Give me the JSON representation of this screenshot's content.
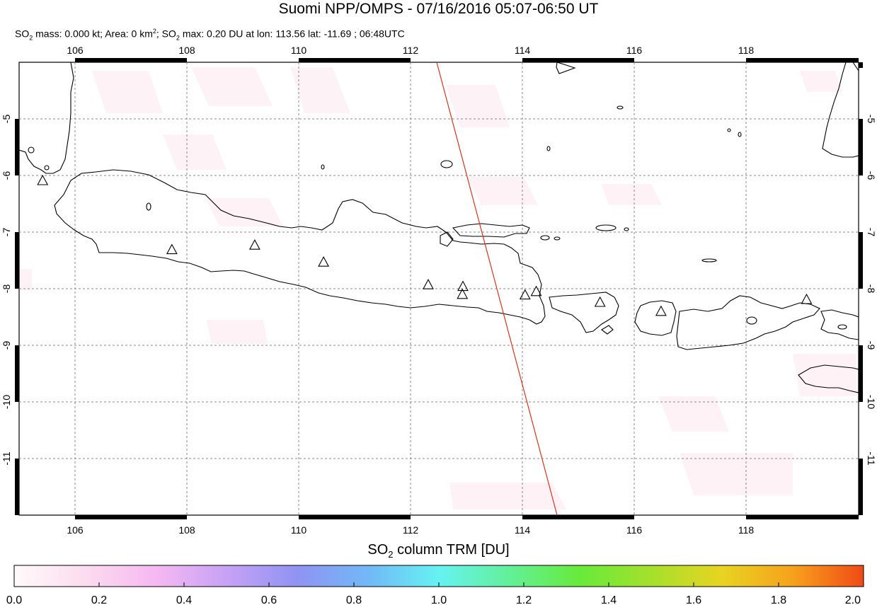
{
  "header": {
    "title": "Suomi NPP/OMPS - 07/16/2016 05:07-06:50 UT",
    "subtitle_parts": {
      "so2_a": "SO",
      "sub2a": "2",
      "mass": " mass: 0.000 kt; Area: 0 km",
      "sup2": "2",
      "sep": "; SO",
      "sub2b": "2",
      "rest": " max: 0.20 DU at lon: 113.56 lat: -11.69 ; 06:48UTC"
    }
  },
  "map": {
    "lon_ticks": [
      "106",
      "108",
      "110",
      "112",
      "114",
      "116",
      "118"
    ],
    "lat_ticks": [
      "-5",
      "-6",
      "-7",
      "-8",
      "-9",
      "-10",
      "-11"
    ],
    "lon_range": [
      105.0,
      120.0
    ],
    "lat_range": [
      -12.0,
      -4.0
    ],
    "grid": true,
    "orbit_track_color": "#e0331c",
    "volcanoes": [
      {
        "lon": 105.42,
        "lat": -6.1
      },
      {
        "lon": 107.73,
        "lat": -7.32
      },
      {
        "lon": 109.21,
        "lat": -7.24
      },
      {
        "lon": 110.44,
        "lat": -7.54
      },
      {
        "lon": 112.31,
        "lat": -7.94
      },
      {
        "lon": 112.93,
        "lat": -7.97
      },
      {
        "lon": 112.92,
        "lat": -8.11
      },
      {
        "lon": 114.04,
        "lat": -8.12
      },
      {
        "lon": 114.24,
        "lat": -8.06
      },
      {
        "lon": 115.38,
        "lat": -8.25
      },
      {
        "lon": 116.47,
        "lat": -8.41
      },
      {
        "lon": 119.07,
        "lat": -8.2
      }
    ]
  },
  "colorbar": {
    "title_prefix": "SO",
    "title_sub": "2",
    "title_suffix": " column TRM [DU]",
    "ticks": [
      "0.0",
      "0.2",
      "0.4",
      "0.6",
      "0.8",
      "1.0",
      "1.2",
      "1.4",
      "1.6",
      "1.8",
      "2.0"
    ],
    "colors": [
      "#fffafa",
      "#fcdcef",
      "#f6b8f2",
      "#c7a2f5",
      "#9093f3",
      "#72b8f7",
      "#66f2f2",
      "#63f099",
      "#68ea3a",
      "#a5e02c",
      "#e8d421",
      "#f7a11c",
      "#f04a17"
    ]
  }
}
